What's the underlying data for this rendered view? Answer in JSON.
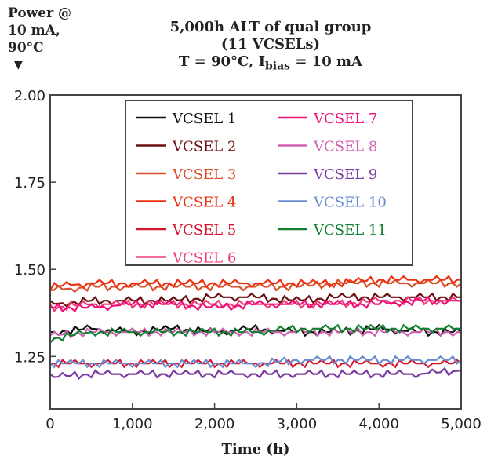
{
  "chart_data": {
    "type": "line",
    "title_lines": [
      "5,000h ALT of qual group",
      "(11 VCSELs)"
    ],
    "subtitle": {
      "prefix": "T = 90°C, I",
      "subscript": "bias",
      "suffix": " = 10 mA"
    },
    "ylabel_lines": [
      "Power @",
      "10 mA,",
      "90°C"
    ],
    "ylabel_marker": "▼",
    "xlabel": "Time (h)",
    "xlim": [
      0,
      5000
    ],
    "ylim": [
      1.1,
      2.0
    ],
    "xticks": [
      0,
      1000,
      2000,
      3000,
      4000,
      5000
    ],
    "xtick_labels": [
      "0",
      "1,000",
      "2,000",
      "3,000",
      "4,000",
      "5,000"
    ],
    "yticks": [
      1.25,
      1.5,
      1.75,
      2.0
    ],
    "ytick_labels": [
      "1.25",
      "1.50",
      "1.75",
      "2.00"
    ],
    "grid": false,
    "legend_placement": "top-center",
    "x": [
      0,
      500,
      1000,
      1500,
      2000,
      2500,
      3000,
      3500,
      4000,
      4500,
      5000
    ],
    "series": [
      {
        "name": "VCSEL 1",
        "color": "#111111",
        "values": [
          1.32,
          1.33,
          1.32,
          1.33,
          1.32,
          1.33,
          1.32,
          1.32,
          1.33,
          1.32,
          1.32
        ]
      },
      {
        "name": "VCSEL 2",
        "color": "#6b1010",
        "values": [
          1.4,
          1.41,
          1.41,
          1.41,
          1.42,
          1.42,
          1.41,
          1.42,
          1.42,
          1.42,
          1.42
        ]
      },
      {
        "name": "VCSEL 3",
        "color": "#d8502a",
        "values": [
          1.44,
          1.45,
          1.45,
          1.45,
          1.45,
          1.45,
          1.45,
          1.46,
          1.46,
          1.46,
          1.46
        ]
      },
      {
        "name": "VCSEL 4",
        "color": "#ee3010",
        "values": [
          1.45,
          1.46,
          1.46,
          1.46,
          1.46,
          1.46,
          1.46,
          1.46,
          1.47,
          1.47,
          1.47
        ]
      },
      {
        "name": "VCSEL 5",
        "color": "#d8142c",
        "values": [
          1.23,
          1.23,
          1.23,
          1.23,
          1.23,
          1.23,
          1.23,
          1.23,
          1.23,
          1.23,
          1.23
        ]
      },
      {
        "name": "VCSEL 6",
        "color": "#f03c78",
        "values": [
          1.39,
          1.4,
          1.4,
          1.4,
          1.4,
          1.4,
          1.4,
          1.4,
          1.41,
          1.41,
          1.41
        ]
      },
      {
        "name": "VCSEL 7",
        "color": "#f0107a",
        "values": [
          1.39,
          1.39,
          1.4,
          1.4,
          1.39,
          1.4,
          1.4,
          1.4,
          1.4,
          1.41,
          1.41
        ]
      },
      {
        "name": "VCSEL 8",
        "color": "#d060b0",
        "values": [
          1.31,
          1.32,
          1.32,
          1.32,
          1.32,
          1.32,
          1.32,
          1.32,
          1.32,
          1.32,
          1.32
        ]
      },
      {
        "name": "VCSEL 9",
        "color": "#7a3aa0",
        "values": [
          1.19,
          1.2,
          1.2,
          1.2,
          1.2,
          1.2,
          1.2,
          1.2,
          1.2,
          1.2,
          1.21
        ]
      },
      {
        "name": "VCSEL 10",
        "color": "#6a8ad0",
        "values": [
          1.23,
          1.23,
          1.23,
          1.23,
          1.23,
          1.23,
          1.24,
          1.24,
          1.24,
          1.24,
          1.24
        ]
      },
      {
        "name": "VCSEL 11",
        "color": "#108030",
        "values": [
          1.3,
          1.32,
          1.32,
          1.32,
          1.32,
          1.32,
          1.33,
          1.33,
          1.33,
          1.33,
          1.33
        ]
      }
    ]
  }
}
